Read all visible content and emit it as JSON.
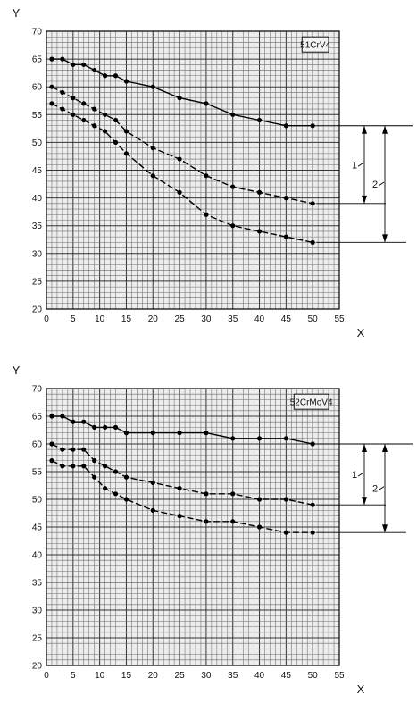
{
  "chart_data": [
    {
      "type": "line",
      "title": "",
      "xlabel": "X",
      "ylabel": "Y",
      "label_box": "51CrV4",
      "xlim": [
        0,
        55
      ],
      "ylim": [
        20,
        70
      ],
      "x_ticks": [
        "0",
        "5",
        "10",
        "15",
        "20",
        "25",
        "30",
        "35",
        "40",
        "45",
        "50",
        "55"
      ],
      "y_ticks": [
        "20",
        "25",
        "30",
        "35",
        "40",
        "45",
        "50",
        "55",
        "60",
        "65",
        "70"
      ],
      "grid": true,
      "series": [
        {
          "points": [
            [
              1,
              65
            ],
            [
              3,
              65
            ],
            [
              5,
              64
            ],
            [
              7,
              64
            ],
            [
              9,
              63
            ],
            [
              11,
              62
            ],
            [
              13,
              62
            ],
            [
              15,
              61
            ],
            [
              20,
              60
            ],
            [
              25,
              58
            ],
            [
              30,
              57
            ],
            [
              35,
              55
            ],
            [
              40,
              54
            ],
            [
              45,
              53
            ],
            [
              50,
              53
            ]
          ]
        },
        {
          "points": [
            [
              1,
              60
            ],
            [
              3,
              59
            ],
            [
              5,
              58
            ],
            [
              7,
              57
            ],
            [
              9,
              56
            ],
            [
              11,
              55
            ],
            [
              13,
              54
            ],
            [
              15,
              52
            ],
            [
              20,
              49
            ],
            [
              25,
              47
            ],
            [
              30,
              44
            ],
            [
              35,
              42
            ],
            [
              40,
              41
            ],
            [
              45,
              40
            ],
            [
              50,
              39
            ]
          ]
        },
        {
          "points": [
            [
              1,
              57
            ],
            [
              3,
              56
            ],
            [
              5,
              55
            ],
            [
              7,
              54
            ],
            [
              9,
              53
            ],
            [
              11,
              52
            ],
            [
              13,
              50
            ],
            [
              15,
              48
            ],
            [
              20,
              44
            ],
            [
              25,
              41
            ],
            [
              30,
              37
            ],
            [
              35,
              35
            ],
            [
              40,
              34
            ],
            [
              45,
              33
            ],
            [
              50,
              32
            ]
          ]
        }
      ],
      "dimensions": [
        {
          "label": "1",
          "from": 53,
          "to": 39
        },
        {
          "label": "2",
          "from": 53,
          "to": 32
        }
      ]
    },
    {
      "type": "line",
      "title": "",
      "xlabel": "X",
      "ylabel": "Y",
      "label_box": "52CrMoV4",
      "xlim": [
        0,
        55
      ],
      "ylim": [
        20,
        70
      ],
      "x_ticks": [
        "0",
        "5",
        "10",
        "15",
        "20",
        "25",
        "30",
        "35",
        "40",
        "45",
        "50",
        "55"
      ],
      "y_ticks": [
        "20",
        "25",
        "30",
        "35",
        "40",
        "45",
        "50",
        "55",
        "60",
        "65",
        "70"
      ],
      "grid": true,
      "series": [
        {
          "points": [
            [
              1,
              65
            ],
            [
              3,
              65
            ],
            [
              5,
              64
            ],
            [
              7,
              64
            ],
            [
              9,
              63
            ],
            [
              11,
              63
            ],
            [
              13,
              63
            ],
            [
              15,
              62
            ],
            [
              20,
              62
            ],
            [
              25,
              62
            ],
            [
              30,
              62
            ],
            [
              35,
              61
            ],
            [
              40,
              61
            ],
            [
              45,
              61
            ],
            [
              50,
              60
            ]
          ]
        },
        {
          "points": [
            [
              1,
              60
            ],
            [
              3,
              59
            ],
            [
              5,
              59
            ],
            [
              7,
              59
            ],
            [
              9,
              57
            ],
            [
              11,
              56
            ],
            [
              13,
              55
            ],
            [
              15,
              54
            ],
            [
              20,
              53
            ],
            [
              25,
              52
            ],
            [
              30,
              51
            ],
            [
              35,
              51
            ],
            [
              40,
              50
            ],
            [
              45,
              50
            ],
            [
              50,
              49
            ]
          ]
        },
        {
          "points": [
            [
              1,
              57
            ],
            [
              3,
              56
            ],
            [
              5,
              56
            ],
            [
              7,
              56
            ],
            [
              9,
              54
            ],
            [
              11,
              52
            ],
            [
              13,
              51
            ],
            [
              15,
              50
            ],
            [
              20,
              48
            ],
            [
              25,
              47
            ],
            [
              30,
              46
            ],
            [
              35,
              46
            ],
            [
              40,
              45
            ],
            [
              45,
              44
            ],
            [
              50,
              44
            ]
          ]
        }
      ],
      "dimensions": [
        {
          "label": "1",
          "from": 60,
          "to": 49
        },
        {
          "label": "2",
          "from": 60,
          "to": 44
        }
      ]
    }
  ]
}
